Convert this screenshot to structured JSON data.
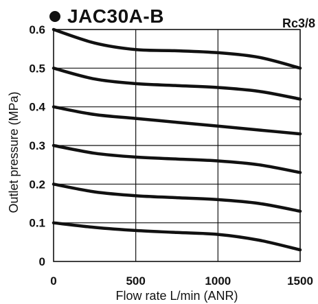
{
  "chart_data": {
    "type": "line",
    "title": "JAC30A-B",
    "subtitle": "Rc3/8",
    "xlabel": "Flow rate L/min (ANR)",
    "ylabel": "Outlet pressure (MPa)",
    "xlim": [
      0,
      1500
    ],
    "ylim": [
      0,
      0.6
    ],
    "x_ticks": [
      "0",
      "500",
      "1000",
      "1500"
    ],
    "y_ticks": [
      "0",
      "0.1",
      "0.2",
      "0.3",
      "0.4",
      "0.5",
      "0.6"
    ],
    "grid": true,
    "colors": {
      "line": "#111111",
      "grid": "#111111",
      "background": "#ffffff"
    },
    "series": [
      {
        "x": [
          0,
          250,
          500,
          750,
          1000,
          1250,
          1500
        ],
        "y": [
          0.6,
          0.565,
          0.548,
          0.545,
          0.54,
          0.528,
          0.5
        ]
      },
      {
        "x": [
          0,
          250,
          500,
          750,
          1000,
          1250,
          1500
        ],
        "y": [
          0.5,
          0.472,
          0.46,
          0.455,
          0.45,
          0.44,
          0.42
        ]
      },
      {
        "x": [
          0,
          250,
          500,
          750,
          1000,
          1250,
          1500
        ],
        "y": [
          0.4,
          0.38,
          0.37,
          0.36,
          0.35,
          0.34,
          0.33
        ]
      },
      {
        "x": [
          0,
          250,
          500,
          750,
          1000,
          1250,
          1500
        ],
        "y": [
          0.3,
          0.28,
          0.27,
          0.265,
          0.26,
          0.25,
          0.23
        ]
      },
      {
        "x": [
          0,
          250,
          500,
          750,
          1000,
          1250,
          1500
        ],
        "y": [
          0.2,
          0.18,
          0.17,
          0.165,
          0.16,
          0.15,
          0.13
        ]
      },
      {
        "x": [
          0,
          250,
          500,
          750,
          1000,
          1250,
          1500
        ],
        "y": [
          0.1,
          0.088,
          0.08,
          0.075,
          0.07,
          0.055,
          0.03
        ]
      }
    ]
  }
}
